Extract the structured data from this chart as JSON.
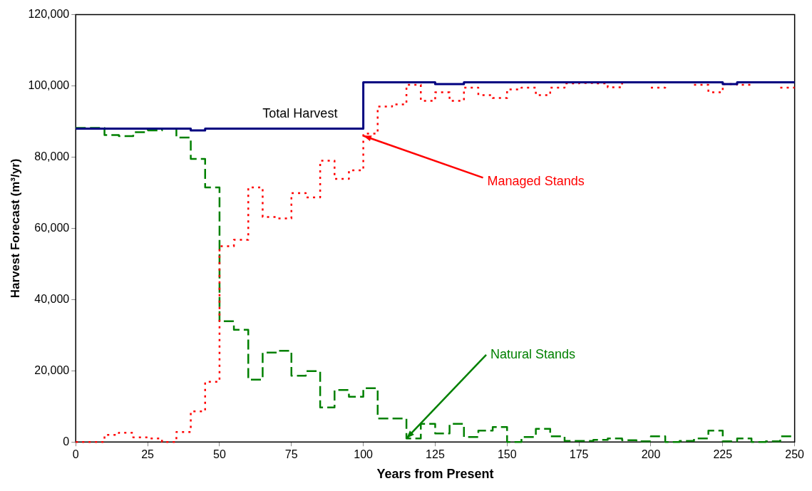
{
  "chart_data": {
    "type": "step",
    "xlabel": "Years from Present",
    "ylabel": "Harvest Forecast (m³/yr)",
    "x": [
      0,
      5,
      10,
      15,
      20,
      25,
      30,
      35,
      40,
      45,
      50,
      55,
      60,
      65,
      70,
      75,
      80,
      85,
      90,
      95,
      100,
      105,
      110,
      115,
      120,
      125,
      130,
      135,
      140,
      145,
      150,
      155,
      160,
      165,
      170,
      175,
      180,
      185,
      190,
      195,
      200,
      205,
      210,
      215,
      220,
      225,
      230,
      235,
      240,
      245,
      250
    ],
    "xlim": [
      0,
      250
    ],
    "xticks": [
      0,
      25,
      50,
      75,
      100,
      125,
      150,
      175,
      200,
      225,
      250
    ],
    "ylim": [
      0,
      120000
    ],
    "yticks": [
      {
        "value": 0,
        "label": "0"
      },
      {
        "value": 20000,
        "label": "20,000"
      },
      {
        "value": 40000,
        "label": "40,000"
      },
      {
        "value": 60000,
        "label": "60,000"
      },
      {
        "value": 80000,
        "label": "80,000"
      },
      {
        "value": 100000,
        "label": "100,000"
      },
      {
        "value": 120000,
        "label": "120,000"
      }
    ],
    "grid": false,
    "legend": false,
    "marker": "none",
    "series": [
      {
        "name": "Total Harvest",
        "color": "#000080",
        "line_style": "solid",
        "values": [
          88000,
          88000,
          88000,
          88000,
          88000,
          88000,
          88000,
          88000,
          87500,
          88000,
          88000,
          88000,
          88000,
          88000,
          88000,
          88000,
          88000,
          88000,
          88000,
          88000,
          101000,
          101000,
          101000,
          101000,
          101000,
          100500,
          100500,
          101000,
          101000,
          101000,
          101000,
          101000,
          101000,
          101000,
          101000,
          101000,
          101000,
          101000,
          101000,
          101000,
          101000,
          101000,
          101000,
          101000,
          101000,
          100500,
          101000,
          101000,
          101000,
          101000,
          101000
        ]
      },
      {
        "name": "Managed Stands",
        "color": "#ff0000",
        "line_style": "dotted",
        "values": [
          0,
          0,
          2000,
          2600,
          1300,
          1000,
          0,
          2800,
          8600,
          16900,
          55000,
          56800,
          71500,
          63200,
          62800,
          69900,
          68700,
          79000,
          73900,
          76300,
          86600,
          94200,
          94800,
          100300,
          95800,
          98200,
          95800,
          99500,
          97400,
          96600,
          99000,
          99500,
          97400,
          99500,
          100700,
          100800,
          100700,
          99600,
          101000,
          null,
          99500,
          101000,
          null,
          100300,
          98200,
          100500,
          100300,
          101000,
          null,
          99500,
          99500
        ]
      },
      {
        "name": "Natural Stands",
        "color": "#008000",
        "line_style": "dashed",
        "values": [
          88200,
          88200,
          86200,
          85900,
          87000,
          87500,
          88000,
          85500,
          79500,
          71500,
          33900,
          31500,
          17500,
          25100,
          25600,
          18600,
          19900,
          9700,
          14600,
          12700,
          15100,
          6600,
          6600,
          1000,
          5100,
          2400,
          5100,
          1400,
          3200,
          4200,
          0,
          1400,
          3700,
          1600,
          300,
          300,
          600,
          1000,
          500,
          200,
          1600,
          0,
          300,
          1000,
          3200,
          200,
          1000,
          0,
          200,
          1600,
          1600
        ]
      }
    ]
  }
}
